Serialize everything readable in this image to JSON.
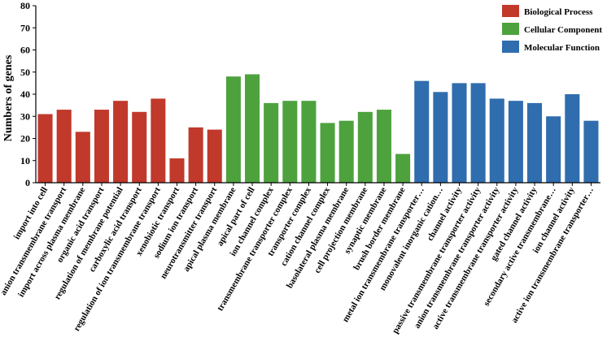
{
  "chart_data": {
    "type": "bar",
    "title": "",
    "xlabel": "",
    "ylabel": "Numbers of genes",
    "ylim": [
      0,
      80
    ],
    "yticks": [
      0,
      10,
      20,
      30,
      40,
      50,
      60,
      70,
      80
    ],
    "grid": false,
    "legend_position": "top-right",
    "groups": [
      {
        "name": "Biological Process",
        "color": "#C0392B"
      },
      {
        "name": "Cellular Component",
        "color": "#4EA23E"
      },
      {
        "name": "Molecular Function",
        "color": "#2F6DAE"
      }
    ],
    "categories": [
      "import into cell",
      "anion transmembrane transport",
      "import across plasma membrane",
      "organic acid transport",
      "regulation of membrane potential",
      "carboxylic acid transport",
      "regulation of ion transmembrane transport",
      "xenobiotic transport",
      "sodium ion transport",
      "neurotransmitter transport",
      "apical plasma membrane",
      "apical part of cell",
      "ion channel complex",
      "transmembrane transporter complex",
      "transporter complex",
      "cation channel complex",
      "basolateral plasma membrane",
      "cell projection membrane",
      "synaptic membrane",
      "brush border membrane",
      "metal ion transmembrane transporter…",
      "monovalent inorganic cation…",
      "channel activity",
      "passive transmembrane transporter activity",
      "anion transmembrane transporter activity",
      "active transmembrane transporter activity",
      "gated channel activity",
      "secondary active transmembrane…",
      "ion channel activity",
      "active ion transmembrane transporter…"
    ],
    "category_groups": [
      0,
      0,
      0,
      0,
      0,
      0,
      0,
      0,
      0,
      0,
      1,
      1,
      1,
      1,
      1,
      1,
      1,
      1,
      1,
      1,
      2,
      2,
      2,
      2,
      2,
      2,
      2,
      2,
      2,
      2
    ],
    "values": [
      31,
      33,
      23,
      33,
      37,
      32,
      38,
      11,
      25,
      24,
      48,
      49,
      36,
      37,
      37,
      27,
      28,
      32,
      33,
      13,
      46,
      41,
      45,
      45,
      38,
      37,
      36,
      30,
      40,
      28
    ]
  }
}
